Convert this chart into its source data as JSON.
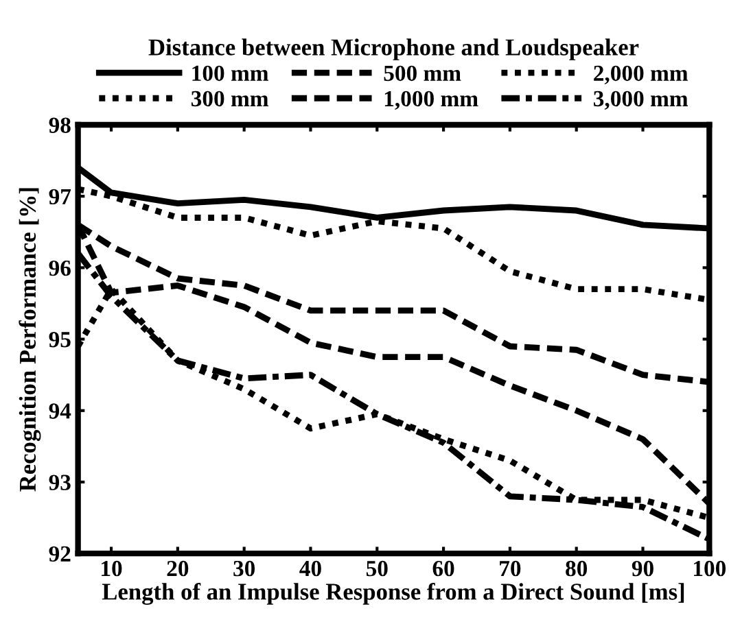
{
  "chart_data": {
    "type": "line",
    "legend_title": "Distance between Microphone and Loudspeaker",
    "xlabel": "Length of an Impulse Response from a Direct Sound [ms]",
    "ylabel": "Recognition Performance [%]",
    "x": [
      5,
      10,
      20,
      30,
      40,
      50,
      60,
      70,
      80,
      90,
      100
    ],
    "xlim": [
      5,
      100
    ],
    "xticks": [
      10,
      20,
      30,
      40,
      50,
      60,
      70,
      80,
      90,
      100
    ],
    "ylim": [
      92,
      98
    ],
    "yticks": [
      92,
      93,
      94,
      95,
      96,
      97,
      98
    ],
    "grid": false,
    "legend": "top",
    "marker": "none",
    "series": [
      {
        "name": "100 mm",
        "color": "#000000",
        "line_style": "solid",
        "values": [
          97.4,
          97.05,
          96.9,
          96.95,
          96.85,
          96.7,
          96.8,
          96.85,
          96.8,
          96.6,
          96.55
        ]
      },
      {
        "name": "300 mm",
        "color": "#000000",
        "line_style": "dotted",
        "values": [
          97.1,
          97.0,
          96.7,
          96.7,
          96.45,
          96.65,
          96.55,
          95.95,
          95.7,
          95.7,
          95.55
        ]
      },
      {
        "name": "500 mm",
        "color": "#000000",
        "line_style": "dashed",
        "values": [
          96.6,
          96.3,
          95.85,
          95.75,
          95.4,
          95.4,
          95.4,
          94.9,
          94.85,
          94.5,
          94.4
        ]
      },
      {
        "name": "1,000 mm",
        "color": "#000000",
        "line_style": "dashed",
        "values": [
          96.6,
          95.65,
          95.75,
          95.45,
          94.95,
          94.75,
          94.75,
          94.35,
          94.0,
          93.6,
          92.7
        ]
      },
      {
        "name": "2,000 mm",
        "color": "#000000",
        "line_style": "dotted",
        "values": [
          94.9,
          95.7,
          94.7,
          94.3,
          93.75,
          93.95,
          93.6,
          93.3,
          92.75,
          92.75,
          92.5
        ]
      },
      {
        "name": "3,000 mm",
        "color": "#000000",
        "line_style": "dashdot",
        "values": [
          96.2,
          95.6,
          94.7,
          94.45,
          94.5,
          93.95,
          93.55,
          92.8,
          92.75,
          92.65,
          92.2
        ]
      }
    ]
  }
}
